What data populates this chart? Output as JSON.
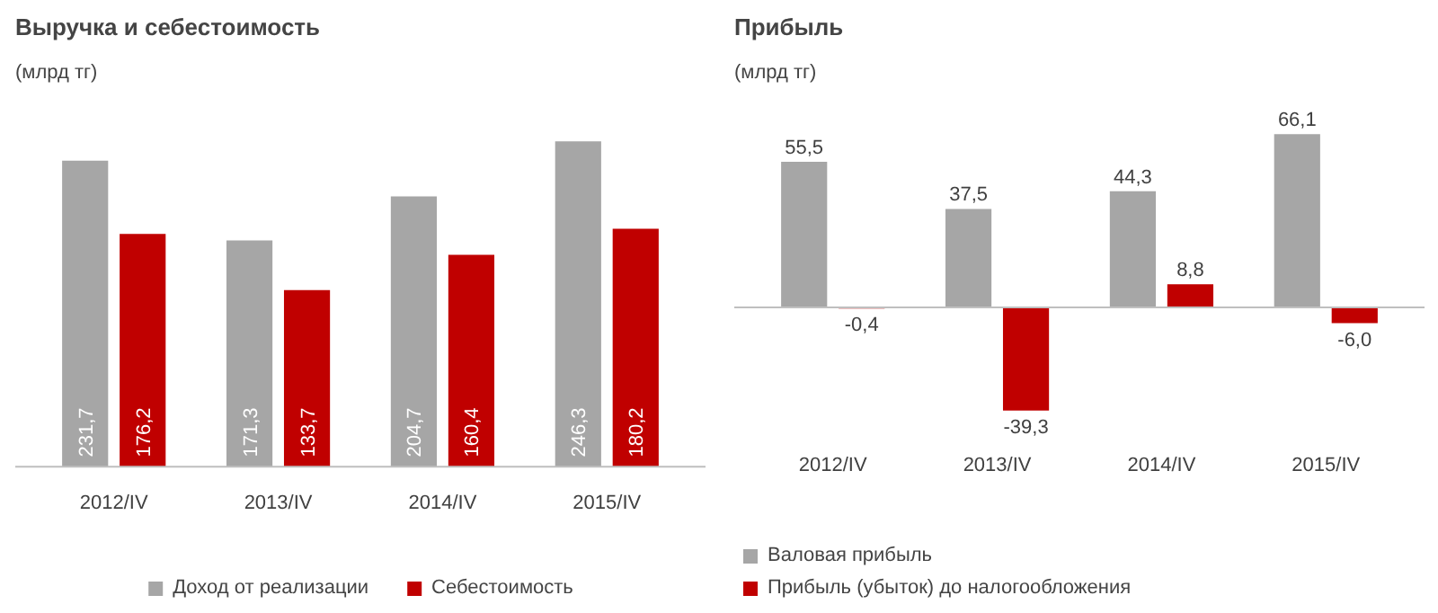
{
  "chart_data": [
    {
      "type": "bar",
      "title": "Выручка  и себестоимость",
      "subtitle": "(млрд тг)",
      "categories": [
        "2012/IV",
        "2013/IV",
        "2014/IV",
        "2015/IV"
      ],
      "legend": "bottom",
      "series": [
        {
          "name": "Доход от реализации",
          "color": "#a6a6a6",
          "values": [
            231.7,
            171.3,
            204.7,
            246.3
          ],
          "value_labels": [
            "231,7",
            "171,3",
            "204,7",
            "246,3"
          ]
        },
        {
          "name": "Себестоимость",
          "color": "#c00000",
          "values": [
            176.2,
            133.7,
            160.4,
            180.2
          ],
          "value_labels": [
            "176,2",
            "133,7",
            "160,4",
            "180,2"
          ]
        }
      ]
    },
    {
      "type": "bar",
      "title": "Прибыль",
      "subtitle": "(млрд тг)",
      "categories": [
        "2012/IV",
        "2013/IV",
        "2014/IV",
        "2015/IV"
      ],
      "legend": "bottom",
      "series": [
        {
          "name": "Валовая прибыль",
          "color": "#a6a6a6",
          "values": [
            55.5,
            37.5,
            44.3,
            66.1
          ],
          "value_labels": [
            "55,5",
            "37,5",
            "44,3",
            "66,1"
          ]
        },
        {
          "name": "Прибыль (убыток) до налогообложения",
          "color": "#c00000",
          "values": [
            -0.4,
            -39.3,
            8.8,
            -6.0
          ],
          "value_labels": [
            "-0,4",
            "-39,3",
            "8,8",
            "-6,0"
          ]
        }
      ]
    }
  ]
}
